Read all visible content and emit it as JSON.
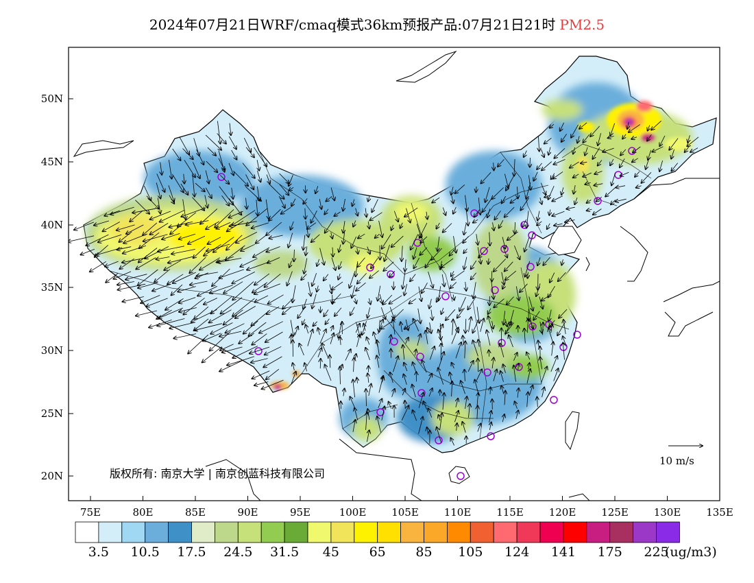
{
  "title": {
    "main": "2024年07月21日WRF/cmaq模式36km预报产品:07月21日21时",
    "variable": "PM2.5",
    "variable_color": "#e83c3c"
  },
  "map": {
    "lat_labels": [
      "50N",
      "45N",
      "40N",
      "35N",
      "30N",
      "25N",
      "20N"
    ],
    "lon_labels": [
      "75E",
      "80E",
      "85E",
      "90E",
      "95E",
      "100E",
      "105E",
      "110E",
      "115E",
      "120E",
      "125E",
      "130E",
      "135E"
    ],
    "copyright": "版权所有: 南京大学 | 南京创蓝科技有限公司",
    "wind_reference": "10 m/s"
  },
  "colorbar": {
    "colors": [
      "#ffffff",
      "#d4eef9",
      "#a0d8f3",
      "#6baedb",
      "#4090c8",
      "#e0ecc8",
      "#bdd88a",
      "#c6e07a",
      "#92cc50",
      "#6aaa36",
      "#f0f86e",
      "#f2e45a",
      "#fff200",
      "#ffe000",
      "#f9b440",
      "#fba828",
      "#ff8a00",
      "#f06030",
      "#ff6a70",
      "#f03858",
      "#f00050",
      "#ff0000",
      "#c81e82",
      "#a83060",
      "#9c38c8",
      "#8a2be8"
    ],
    "labels": [
      "3.5",
      "10.5",
      "17.5",
      "24.5",
      "31.5",
      "45",
      "65",
      "85",
      "105",
      "124",
      "141",
      "175",
      "225"
    ],
    "unit": "(ug/m3)"
  }
}
